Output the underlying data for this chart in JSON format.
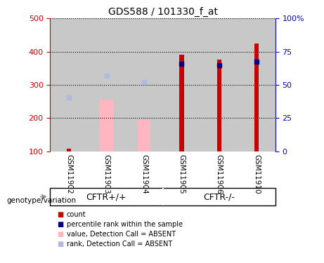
{
  "title": "GDS588 / 101330_f_at",
  "samples": [
    "GSM11902",
    "GSM11903",
    "GSM11904",
    "GSM11905",
    "GSM11906",
    "GSM11910"
  ],
  "red_bars_values": [
    108,
    null,
    null,
    390,
    375,
    425
  ],
  "blue_marker_values": [
    null,
    null,
    null,
    363,
    358,
    370
  ],
  "pink_bars_values": [
    null,
    255,
    195,
    null,
    null,
    null
  ],
  "light_blue_marker_values": [
    261,
    327,
    308,
    null,
    null,
    null
  ],
  "bar_base": 100,
  "ylim_left": [
    100,
    500
  ],
  "ylim_right": [
    0,
    100
  ],
  "yticks_left": [
    100,
    200,
    300,
    400,
    500
  ],
  "ytick_labels_left": [
    "100",
    "200",
    "300",
    "400",
    "500"
  ],
  "yticks_right_vals": [
    0,
    25,
    50,
    75,
    100
  ],
  "ytick_labels_right": [
    "0",
    "25",
    "50",
    "75",
    "100%"
  ],
  "left_axis_color": "#cc0000",
  "right_axis_color": "#0000cc",
  "red_bar_color": "#cc0000",
  "blue_marker_color": "#00008b",
  "pink_bar_color": "#ffb6c1",
  "light_blue_color": "#b0b8e0",
  "bg_sample": "#c8c8c8",
  "bg_group": "#66ee66",
  "group1_label": "CFTR+/+",
  "group2_label": "CFTR-/-",
  "group_axis_label": "genotype/variation",
  "legend_labels": [
    "count",
    "percentile rank within the sample",
    "value, Detection Call = ABSENT",
    "rank, Detection Call = ABSENT"
  ],
  "legend_colors": [
    "#cc0000",
    "#00008b",
    "#ffb6c1",
    "#b0b8e0"
  ],
  "red_bar_width": 0.12,
  "pink_bar_width": 0.35
}
